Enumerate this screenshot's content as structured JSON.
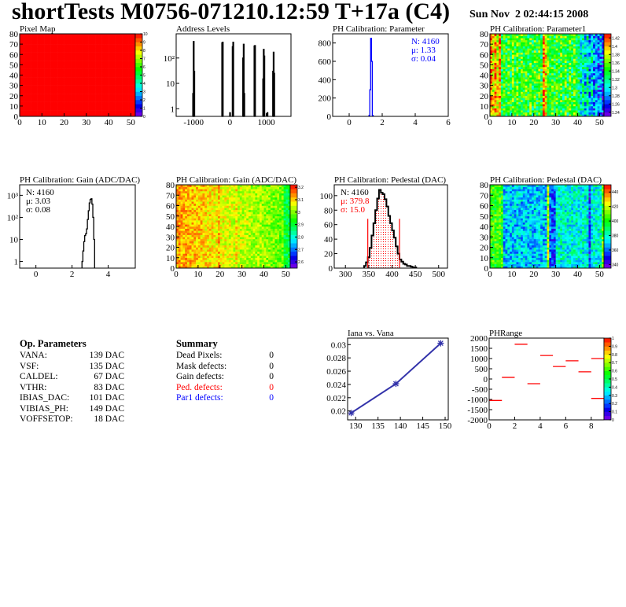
{
  "header": {
    "title": "shortTests M0756-071210.12:59 T+17a (C4)",
    "date": "Sun Nov  2 02:44:15 2008"
  },
  "op_parameters": {
    "heading": "Op. Parameters",
    "rows": [
      {
        "name": "VANA:",
        "value": "139 DAC"
      },
      {
        "name": "VSF:",
        "value": "135 DAC"
      },
      {
        "name": "CALDEL:",
        "value": "67 DAC"
      },
      {
        "name": "VTHR:",
        "value": "83 DAC"
      },
      {
        "name": "IBIAS_DAC:",
        "value": "101 DAC"
      },
      {
        "name": "VIBIAS_PH:",
        "value": "149 DAC"
      },
      {
        "name": "VOFFSETOP:",
        "value": "18 DAC"
      }
    ]
  },
  "summary": {
    "heading": "Summary",
    "rows": [
      {
        "name": "Dead Pixels:",
        "value": "0",
        "color": "#000000"
      },
      {
        "name": "Mask defects:",
        "value": "0",
        "color": "#000000"
      },
      {
        "name": "Gain defects:",
        "value": "0",
        "color": "#000000"
      },
      {
        "name": "Ped. defects:",
        "value": "0",
        "color": "#ff0000"
      },
      {
        "name": "Par1 defects:",
        "value": "0",
        "color": "#0000ff"
      }
    ]
  },
  "chart_data": [
    {
      "id": "pixel-map",
      "type": "heatmap",
      "title": "Pixel Map",
      "xlim": [
        0,
        52
      ],
      "ylim": [
        0,
        80
      ],
      "zlim": [
        0,
        10
      ],
      "uniform_value": 10,
      "x_ticks": [
        "0",
        "10",
        "20",
        "30",
        "40",
        "50"
      ],
      "y_ticks": [
        "0",
        "10",
        "20",
        "30",
        "40",
        "50",
        "60",
        "70",
        "80"
      ],
      "z_ticks": [
        "0",
        "1",
        "2",
        "3",
        "4",
        "5",
        "6",
        "7",
        "8",
        "9",
        "10"
      ]
    },
    {
      "id": "address-levels",
      "type": "bar",
      "title": "Address Levels",
      "log_y": true,
      "xlim": [
        -1480,
        1680
      ],
      "ylim": [
        0.5,
        900
      ],
      "bin_width": 16,
      "bins": [
        [
          -1016,
          4
        ],
        [
          -1000,
          450
        ],
        [
          -984,
          30
        ],
        [
          -216,
          400
        ],
        [
          -200,
          420
        ],
        [
          0,
          0.7
        ],
        [
          72,
          280
        ],
        [
          88,
          420
        ],
        [
          360,
          100
        ],
        [
          376,
          350
        ],
        [
          392,
          4
        ],
        [
          672,
          300
        ],
        [
          688,
          310
        ],
        [
          912,
          15
        ],
        [
          928,
          220
        ],
        [
          944,
          120
        ],
        [
          1030,
          0.7
        ],
        [
          1184,
          30
        ],
        [
          1200,
          170
        ],
        [
          1216,
          25
        ]
      ],
      "x_ticks": [
        "-1000",
        "0",
        "1000"
      ],
      "y_ticks": [
        "1",
        "10",
        "10²"
      ],
      "color": "#000000"
    },
    {
      "id": "ph-parameter",
      "type": "bar",
      "title": "PH Calibration: Parameter",
      "xlim": [
        -1,
        6
      ],
      "ylim": [
        0,
        900
      ],
      "bin_start": 1.2,
      "bin_width": 0.05,
      "values": [
        10,
        290,
        850,
        600,
        10
      ],
      "x_ticks": [
        "0",
        "2",
        "4",
        "6"
      ],
      "y_ticks": [
        "0",
        "200",
        "400",
        "600",
        "800"
      ],
      "stats": [
        "N: 4160",
        "μ: 1.33",
        "σ: 0.04"
      ],
      "color": "#0000ff",
      "stats_color": "#0000ff"
    },
    {
      "id": "ph-parameter1-map",
      "type": "heatmap",
      "title": "PH Calibration: Parameter1",
      "xlim": [
        0,
        52
      ],
      "ylim": [
        0,
        80
      ],
      "zlim": [
        1.23,
        1.43
      ],
      "x_ticks": [
        "0",
        "10",
        "20",
        "30",
        "40",
        "50"
      ],
      "y_ticks": [
        "0",
        "10",
        "20",
        "30",
        "40",
        "50",
        "60",
        "70",
        "80"
      ],
      "z_ticks": [
        "1.24",
        "1.26",
        "1.28",
        "1.3",
        "1.32",
        "1.34",
        "1.36",
        "1.38",
        "1.4",
        "1.42"
      ]
    },
    {
      "id": "gain-hist",
      "type": "bar",
      "title": "PH Calibration: Gain (ADC/DAC)",
      "log_y": true,
      "xlim": [
        -0.9,
        5.5
      ],
      "ylim": [
        0.5,
        3000
      ],
      "bin_start": 2.55,
      "bin_width": 0.05,
      "values": [
        1,
        3,
        8,
        15,
        18,
        30,
        80,
        200,
        450,
        650,
        700,
        400,
        100,
        10
      ],
      "x_ticks": [
        "0",
        "2",
        "4"
      ],
      "y_ticks": [
        "1",
        "10",
        "10²",
        "10³"
      ],
      "stats": [
        "N: 4160",
        "μ: 3.03",
        "σ: 0.08"
      ],
      "color": "#000000",
      "stats_color": "#000000"
    },
    {
      "id": "gain-map",
      "type": "heatmap",
      "title": "PH Calibration: Gain (ADC/DAC)",
      "xlim": [
        0,
        52
      ],
      "ylim": [
        0,
        80
      ],
      "zlim": [
        2.55,
        3.22
      ],
      "x_ticks": [
        "0",
        "10",
        "20",
        "30",
        "40",
        "50"
      ],
      "y_ticks": [
        "0",
        "10",
        "20",
        "30",
        "40",
        "50",
        "60",
        "70",
        "80"
      ],
      "z_ticks": [
        "2.6",
        "2.7",
        "2.8",
        "2.9",
        "3",
        "3.1",
        "3.2"
      ]
    },
    {
      "id": "pedestal-hist",
      "type": "bar",
      "title": "PH Calibration: Pedestal (DAC)",
      "xlim": [
        276,
        519
      ],
      "ylim": [
        0,
        115
      ],
      "bin_start": 340,
      "bin_width": 4,
      "values": [
        3,
        8,
        15,
        28,
        45,
        62,
        80,
        96,
        108,
        104,
        102,
        95,
        85,
        72,
        62,
        52,
        42,
        30,
        20,
        12,
        9,
        6,
        5,
        3,
        3,
        2,
        1,
        1
      ],
      "cuts": [
        348,
        416
      ],
      "cut_height": 68,
      "cut_color": "#ff0000",
      "x_ticks": [
        "300",
        "350",
        "400",
        "450",
        "500"
      ],
      "y_ticks": [
        "0",
        "20",
        "40",
        "60",
        "80",
        "100"
      ],
      "stats": [
        "N: 4160",
        "μ: 379.8",
        "σ: 15.0"
      ],
      "stats_colors": [
        "#000000",
        "#ff0000",
        "#ff0000"
      ],
      "color": "#000000"
    },
    {
      "id": "pedestal-map",
      "type": "heatmap",
      "title": "PH Calibration: Pedestal (DAC)",
      "xlim": [
        0,
        52
      ],
      "ylim": [
        0,
        80
      ],
      "zlim": [
        335,
        450
      ],
      "x_ticks": [
        "0",
        "10",
        "20",
        "30",
        "40",
        "50"
      ],
      "y_ticks": [
        "0",
        "10",
        "20",
        "30",
        "40",
        "50",
        "60",
        "70",
        "80"
      ],
      "z_ticks": [
        "340",
        "360",
        "380",
        "400",
        "420",
        "440"
      ]
    },
    {
      "id": "iana-vs-vana",
      "type": "line",
      "title": "Iana vs. Vana",
      "x": [
        129,
        139,
        149
      ],
      "y": [
        0.0197,
        0.0241,
        0.0302
      ],
      "xlim": [
        128.2,
        150.7
      ],
      "ylim": [
        0.01866,
        0.03098
      ],
      "x_ticks": [
        "130",
        "135",
        "140",
        "145",
        "150"
      ],
      "y_ticks": [
        "0.02",
        "0.022",
        "0.024",
        "0.026",
        "0.028",
        "0.03"
      ],
      "color": "#3333aa"
    },
    {
      "id": "ph-range",
      "type": "scatter",
      "title": "PHRange",
      "xlim": [
        0,
        9
      ],
      "ylim": [
        -2000,
        2000
      ],
      "zlim": [
        0,
        1
      ],
      "segments": [
        [
          0,
          1,
          -1050
        ],
        [
          1,
          2,
          80
        ],
        [
          2,
          3,
          1700
        ],
        [
          3,
          4,
          -230
        ],
        [
          4,
          5,
          1150
        ],
        [
          5,
          6,
          610
        ],
        [
          6,
          7,
          890
        ],
        [
          7,
          8,
          350
        ],
        [
          8,
          9,
          1000
        ],
        [
          8,
          9,
          -950
        ]
      ],
      "x_ticks": [
        "0",
        "2",
        "4",
        "6",
        "8"
      ],
      "y_ticks": [
        "-2000",
        "-1500",
        "-1000",
        "-500",
        "0",
        "500",
        "1000",
        "1500",
        "2000"
      ],
      "z_ticks": [
        "0",
        "0.1",
        "0.2",
        "0.3",
        "0.4",
        "0.5",
        "0.6",
        "0.7",
        "0.8",
        "0.9",
        "1"
      ],
      "color": "#ff0000"
    }
  ]
}
